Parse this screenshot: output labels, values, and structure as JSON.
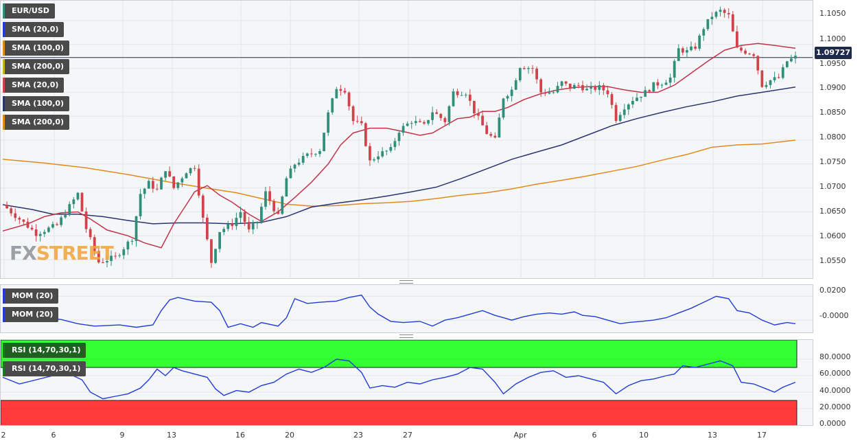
{
  "symbol": "EUR/USD",
  "current_price": "1.09727",
  "logo": {
    "fx": "FX",
    "street": "STREET"
  },
  "colors": {
    "up_candle": "#2f8f7b",
    "down_candle": "#d0434b",
    "sma20": "#c2334a",
    "sma100": "#2a3470",
    "sma200": "#e08a1e",
    "mom_line": "#1f3bd8",
    "rsi_line": "#1f3bd8",
    "rsi_overbought_zone": "#33ff33",
    "rsi_oversold_zone": "#ff3b3b",
    "price_line": "#1e2b4b"
  },
  "main_legend": [
    {
      "label": "EUR/USD",
      "color": "#2f8f7b"
    },
    {
      "label": "SMA (20,0)",
      "color": "#1f3bd8"
    },
    {
      "label": "SMA (100,0)",
      "color": "#e08a1e"
    },
    {
      "label": "SMA (200,0)",
      "color": "#c9b21e"
    },
    {
      "label": "SMA (20,0)",
      "color": "#d0434b"
    },
    {
      "label": "SMA (100,0)",
      "color": "#2a3470"
    },
    {
      "label": "SMA (200,0)",
      "color": "#e08a1e"
    }
  ],
  "mom_legend": [
    {
      "label": "MOM (20)",
      "color": "#1f3bd8"
    },
    {
      "label": "MOM (20)",
      "color": "#1f3bd8"
    }
  ],
  "rsi_legend": [
    {
      "label": "RSI (14,70,30,1)",
      "color": "#1a7a1a"
    },
    {
      "label": "RSI (14,70,30,1)",
      "color": "#1a7a1a"
    }
  ],
  "price_ticks": [
    "1.1050",
    "1.1000",
    "1.0950",
    "1.0900",
    "1.0850",
    "1.0800",
    "1.0750",
    "1.0700",
    "1.0650",
    "1.0600",
    "1.0550"
  ],
  "mom_ticks": [
    "0.0200",
    "-0.0000"
  ],
  "rsi_ticks": [
    "80.0000",
    "60.0000",
    "40.0000",
    "20.0000",
    "0.0000"
  ],
  "x_ticks": [
    "2",
    "6",
    "9",
    "13",
    "16",
    "20",
    "23",
    "27",
    "Apr",
    "6",
    "10",
    "13",
    "17"
  ],
  "chart_data": {
    "type": "candlestick",
    "title": "EUR/USD",
    "x_labels": [
      "2",
      "6",
      "9",
      "13",
      "16",
      "20",
      "23",
      "27",
      "Apr",
      "6",
      "10",
      "13",
      "17"
    ],
    "ylim": [
      1.052,
      1.108
    ],
    "current": 1.09727,
    "close_path": [
      [
        0,
        1.0665
      ],
      [
        8,
        1.0605
      ],
      [
        13,
        1.0622
      ],
      [
        18,
        1.0688
      ],
      [
        20,
        1.0615
      ],
      [
        23,
        1.0545
      ],
      [
        27,
        1.0555
      ],
      [
        31,
        1.0595
      ],
      [
        33,
        1.0688
      ],
      [
        35,
        1.071
      ],
      [
        37,
        1.0695
      ],
      [
        39,
        1.074
      ],
      [
        41,
        1.07
      ],
      [
        44,
        1.0735
      ],
      [
        46,
        1.0745
      ],
      [
        48,
        1.0635
      ],
      [
        50,
        1.0545
      ],
      [
        52,
        1.061
      ],
      [
        55,
        1.0625
      ],
      [
        57,
        1.065
      ],
      [
        59,
        1.061
      ],
      [
        61,
        1.063
      ],
      [
        63,
        1.069
      ],
      [
        66,
        1.064
      ],
      [
        68,
        1.072
      ],
      [
        70,
        1.075
      ],
      [
        73,
        1.0768
      ],
      [
        76,
        1.078
      ],
      [
        78,
        1.0855
      ],
      [
        80,
        1.091
      ],
      [
        82,
        1.0905
      ],
      [
        84,
        1.084
      ],
      [
        86,
        1.083
      ],
      [
        88,
        1.0755
      ],
      [
        90,
        1.077
      ],
      [
        93,
        1.078
      ],
      [
        95,
        1.082
      ],
      [
        98,
        1.084
      ],
      [
        101,
        1.083
      ],
      [
        103,
        1.086
      ],
      [
        106,
        1.084
      ],
      [
        108,
        1.09
      ],
      [
        111,
        1.09
      ],
      [
        113,
        1.086
      ],
      [
        116,
        1.0815
      ],
      [
        118,
        1.08
      ],
      [
        120,
        1.089
      ],
      [
        122,
        1.0905
      ],
      [
        124,
        1.0955
      ],
      [
        127,
        1.095
      ],
      [
        129,
        1.09
      ],
      [
        132,
        1.09
      ],
      [
        134,
        1.092
      ],
      [
        136,
        1.091
      ],
      [
        138,
        1.0915
      ],
      [
        140,
        1.0905
      ],
      [
        143,
        1.091
      ],
      [
        145,
        1.09
      ],
      [
        147,
        1.0845
      ],
      [
        149,
        1.087
      ],
      [
        151,
        1.0885
      ],
      [
        154,
        1.09
      ],
      [
        156,
        1.0915
      ],
      [
        158,
        1.092
      ],
      [
        160,
        1.093
      ],
      [
        162,
        1.099
      ],
      [
        164,
        1.0985
      ],
      [
        166,
        1.0995
      ],
      [
        168,
        1.1035
      ],
      [
        170,
        1.106
      ],
      [
        172,
        1.107
      ],
      [
        174,
        1.106
      ],
      [
        176,
        1.099
      ],
      [
        178,
        1.0985
      ],
      [
        180,
        1.098
      ],
      [
        182,
        1.0915
      ],
      [
        184,
        1.0925
      ],
      [
        186,
        1.093
      ],
      [
        188,
        1.0965
      ],
      [
        190,
        1.0973
      ]
    ],
    "sma20": [
      [
        0,
        1.061
      ],
      [
        6,
        1.0625
      ],
      [
        10,
        1.064
      ],
      [
        14,
        1.0648
      ],
      [
        18,
        1.065
      ],
      [
        21,
        1.0635
      ],
      [
        25,
        1.0612
      ],
      [
        30,
        1.06
      ],
      [
        34,
        1.0585
      ],
      [
        38,
        1.0575
      ],
      [
        41,
        1.0625
      ],
      [
        44,
        1.0665
      ],
      [
        46,
        1.0692
      ],
      [
        49,
        1.0705
      ],
      [
        52,
        1.0685
      ],
      [
        55,
        1.067
      ],
      [
        59,
        1.0645
      ],
      [
        62,
        1.063
      ],
      [
        66,
        1.065
      ],
      [
        70,
        1.068
      ],
      [
        74,
        1.0712
      ],
      [
        78,
        1.075
      ],
      [
        81,
        1.079
      ],
      [
        84,
        1.0815
      ],
      [
        88,
        1.0825
      ],
      [
        92,
        1.0825
      ],
      [
        96,
        1.0818
      ],
      [
        100,
        1.081
      ],
      [
        103,
        1.0815
      ],
      [
        106,
        1.083
      ],
      [
        109,
        1.0845
      ],
      [
        112,
        1.0848
      ],
      [
        115,
        1.086
      ],
      [
        118,
        1.086
      ],
      [
        121,
        1.0868
      ],
      [
        125,
        1.0885
      ],
      [
        129,
        1.0897
      ],
      [
        133,
        1.0905
      ],
      [
        137,
        1.091
      ],
      [
        141,
        1.0912
      ],
      [
        145,
        1.0912
      ],
      [
        149,
        1.0905
      ],
      [
        153,
        1.09
      ],
      [
        157,
        1.09
      ],
      [
        161,
        1.0915
      ],
      [
        165,
        1.094
      ],
      [
        169,
        1.0965
      ],
      [
        173,
        1.0988
      ],
      [
        177,
        1.0998
      ],
      [
        181,
        1.1002
      ],
      [
        185,
        1.0998
      ],
      [
        190,
        1.0992
      ]
    ],
    "sma100": [
      [
        0,
        1.0665
      ],
      [
        7,
        1.0655
      ],
      [
        12,
        1.0645
      ],
      [
        18,
        1.0645
      ],
      [
        24,
        1.064
      ],
      [
        30,
        1.0632
      ],
      [
        36,
        1.0625
      ],
      [
        42,
        1.0627
      ],
      [
        48,
        1.0627
      ],
      [
        55,
        1.0625
      ],
      [
        62,
        1.0628
      ],
      [
        68,
        1.064
      ],
      [
        74,
        1.066
      ],
      [
        80,
        1.0668
      ],
      [
        86,
        1.0675
      ],
      [
        92,
        1.0683
      ],
      [
        98,
        1.0692
      ],
      [
        104,
        1.0702
      ],
      [
        110,
        1.072
      ],
      [
        116,
        1.074
      ],
      [
        122,
        1.076
      ],
      [
        128,
        1.0775
      ],
      [
        134,
        1.079
      ],
      [
        140,
        1.081
      ],
      [
        146,
        1.083
      ],
      [
        152,
        1.0845
      ],
      [
        158,
        1.0858
      ],
      [
        164,
        1.087
      ],
      [
        170,
        1.088
      ],
      [
        176,
        1.0892
      ],
      [
        182,
        1.09
      ],
      [
        190,
        1.0911
      ]
    ],
    "sma200": [
      [
        0,
        1.076
      ],
      [
        10,
        1.0752
      ],
      [
        20,
        1.0742
      ],
      [
        30,
        1.0728
      ],
      [
        40,
        1.0712
      ],
      [
        50,
        1.0698
      ],
      [
        56,
        1.069
      ],
      [
        62,
        1.0678
      ],
      [
        68,
        1.0666
      ],
      [
        74,
        1.0662
      ],
      [
        80,
        1.0663
      ],
      [
        86,
        1.0667
      ],
      [
        92,
        1.0669
      ],
      [
        98,
        1.0672
      ],
      [
        104,
        1.0678
      ],
      [
        110,
        1.0685
      ],
      [
        116,
        1.069
      ],
      [
        122,
        1.0698
      ],
      [
        128,
        1.0708
      ],
      [
        134,
        1.0716
      ],
      [
        140,
        1.0725
      ],
      [
        146,
        1.0735
      ],
      [
        152,
        1.0745
      ],
      [
        158,
        1.0758
      ],
      [
        164,
        1.077
      ],
      [
        170,
        1.0785
      ],
      [
        176,
        1.079
      ],
      [
        182,
        1.0792
      ],
      [
        190,
        1.08
      ]
    ],
    "mom": {
      "ylim": [
        -0.008,
        0.026
      ],
      "points": [
        [
          0,
          0.003
        ],
        [
          6,
          0.001
        ],
        [
          10,
          0.002
        ],
        [
          14,
          0.0005
        ],
        [
          18,
          -0.003
        ],
        [
          22,
          -0.005
        ],
        [
          28,
          -0.004
        ],
        [
          32,
          -0.006
        ],
        [
          36,
          -0.004
        ],
        [
          38,
          0.008
        ],
        [
          40,
          0.017
        ],
        [
          42,
          0.019
        ],
        [
          46,
          0.016
        ],
        [
          50,
          0.015
        ],
        [
          52,
          0.008
        ],
        [
          54,
          -0.006
        ],
        [
          57,
          -0.003
        ],
        [
          60,
          -0.006
        ],
        [
          62,
          -0.002
        ],
        [
          66,
          -0.005
        ],
        [
          68,
          0.002
        ],
        [
          70,
          0.018
        ],
        [
          73,
          0.014
        ],
        [
          76,
          0.015
        ],
        [
          80,
          0.016
        ],
        [
          83,
          0.019
        ],
        [
          86,
          0.021
        ],
        [
          88,
          0.011
        ],
        [
          90,
          0.005
        ],
        [
          93,
          -0.001
        ],
        [
          96,
          -0.002
        ],
        [
          100,
          -0.001
        ],
        [
          103,
          -0.005
        ],
        [
          106,
          0.0
        ],
        [
          109,
          0.002
        ],
        [
          112,
          0.005
        ],
        [
          115,
          0.008
        ],
        [
          118,
          0.004
        ],
        [
          120,
          0.002
        ],
        [
          122,
          0.0
        ],
        [
          125,
          0.003
        ],
        [
          128,
          0.005
        ],
        [
          131,
          0.006
        ],
        [
          134,
          0.005
        ],
        [
          137,
          0.007
        ],
        [
          139,
          0.004
        ],
        [
          142,
          0.003
        ],
        [
          145,
          0.0
        ],
        [
          148,
          -0.003
        ],
        [
          150,
          -0.002
        ],
        [
          153,
          -0.001
        ],
        [
          156,
          0.0
        ],
        [
          159,
          0.002
        ],
        [
          162,
          0.006
        ],
        [
          165,
          0.01
        ],
        [
          168,
          0.015
        ],
        [
          171,
          0.02
        ],
        [
          174,
          0.018
        ],
        [
          176,
          0.008
        ],
        [
          179,
          0.006
        ],
        [
          182,
          0.0
        ],
        [
          185,
          -0.004
        ],
        [
          188,
          -0.002
        ],
        [
          190,
          -0.003
        ]
      ]
    },
    "rsi": {
      "ylim": [
        0,
        100
      ],
      "overbought": 70,
      "oversold": 30,
      "points": [
        [
          0,
          58
        ],
        [
          4,
          50
        ],
        [
          8,
          55
        ],
        [
          12,
          60
        ],
        [
          16,
          62
        ],
        [
          19,
          55
        ],
        [
          21,
          40
        ],
        [
          24,
          32
        ],
        [
          27,
          35
        ],
        [
          30,
          38
        ],
        [
          33,
          45
        ],
        [
          35,
          55
        ],
        [
          37,
          68
        ],
        [
          39,
          60
        ],
        [
          41,
          70
        ],
        [
          43,
          66
        ],
        [
          46,
          62
        ],
        [
          49,
          58
        ],
        [
          51,
          44
        ],
        [
          53,
          36
        ],
        [
          56,
          42
        ],
        [
          59,
          40
        ],
        [
          62,
          48
        ],
        [
          65,
          52
        ],
        [
          68,
          62
        ],
        [
          71,
          68
        ],
        [
          74,
          64
        ],
        [
          77,
          70
        ],
        [
          80,
          80
        ],
        [
          83,
          78
        ],
        [
          86,
          64
        ],
        [
          88,
          45
        ],
        [
          91,
          48
        ],
        [
          94,
          46
        ],
        [
          97,
          52
        ],
        [
          100,
          50
        ],
        [
          103,
          55
        ],
        [
          106,
          58
        ],
        [
          109,
          62
        ],
        [
          112,
          70
        ],
        [
          115,
          68
        ],
        [
          118,
          52
        ],
        [
          120,
          38
        ],
        [
          123,
          50
        ],
        [
          126,
          58
        ],
        [
          129,
          64
        ],
        [
          132,
          66
        ],
        [
          135,
          58
        ],
        [
          138,
          60
        ],
        [
          141,
          56
        ],
        [
          144,
          52
        ],
        [
          147,
          38
        ],
        [
          150,
          48
        ],
        [
          153,
          54
        ],
        [
          156,
          56
        ],
        [
          159,
          60
        ],
        [
          161,
          62
        ],
        [
          163,
          72
        ],
        [
          166,
          70
        ],
        [
          169,
          74
        ],
        [
          172,
          78
        ],
        [
          175,
          72
        ],
        [
          177,
          52
        ],
        [
          180,
          50
        ],
        [
          183,
          44
        ],
        [
          185,
          40
        ],
        [
          187,
          46
        ],
        [
          190,
          52
        ]
      ]
    }
  }
}
